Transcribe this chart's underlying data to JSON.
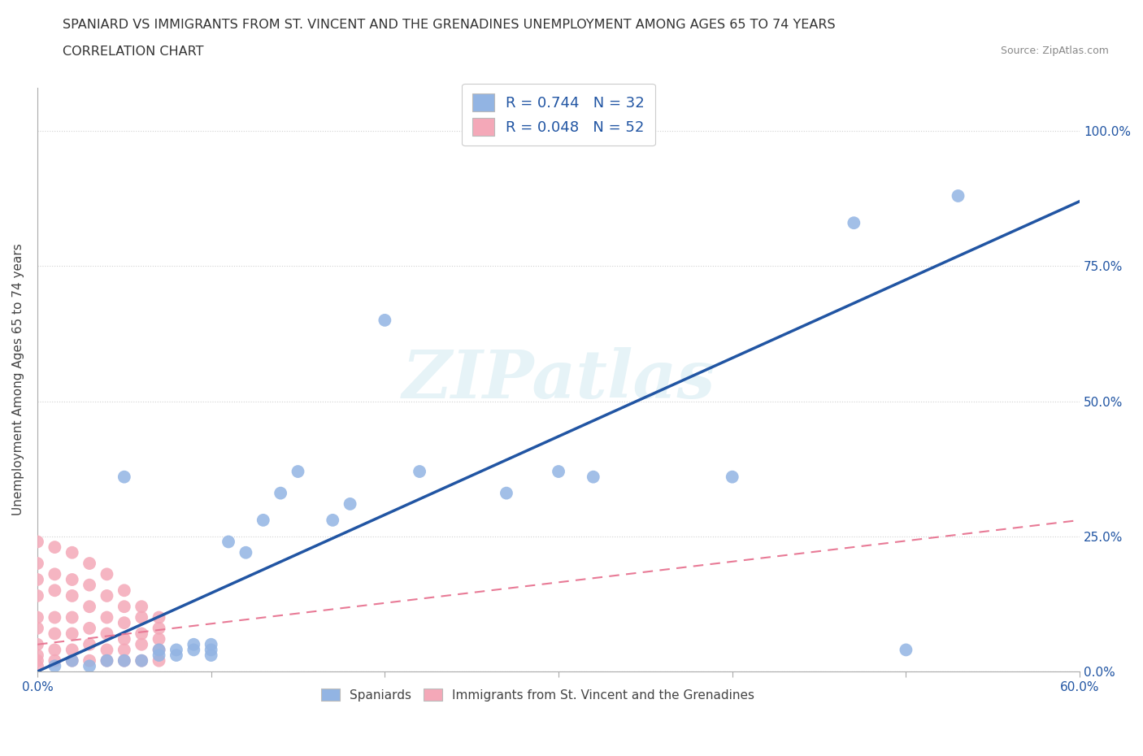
{
  "title_line1": "SPANIARD VS IMMIGRANTS FROM ST. VINCENT AND THE GRENADINES UNEMPLOYMENT AMONG AGES 65 TO 74 YEARS",
  "title_line2": "CORRELATION CHART",
  "source_text": "Source: ZipAtlas.com",
  "ylabel": "Unemployment Among Ages 65 to 74 years",
  "xlim": [
    0.0,
    0.6
  ],
  "ylim": [
    0.0,
    1.08
  ],
  "ytick_labels": [
    "0.0%",
    "25.0%",
    "50.0%",
    "75.0%",
    "100.0%"
  ],
  "ytick_vals": [
    0.0,
    0.25,
    0.5,
    0.75,
    1.0
  ],
  "xtick_vals": [
    0.0,
    0.1,
    0.2,
    0.3,
    0.4,
    0.5,
    0.6
  ],
  "xtick_labels": [
    "0.0%",
    "",
    "",
    "",
    "",
    "",
    "60.0%"
  ],
  "blue_R": 0.744,
  "blue_N": 32,
  "pink_R": 0.048,
  "pink_N": 52,
  "blue_color": "#92b4e3",
  "pink_color": "#f4a8b8",
  "blue_line_color": "#2155a3",
  "pink_line_color": "#e87a96",
  "watermark": "ZIPatlas",
  "blue_scatter_x": [
    0.01,
    0.02,
    0.03,
    0.04,
    0.05,
    0.05,
    0.06,
    0.07,
    0.07,
    0.08,
    0.08,
    0.09,
    0.09,
    0.1,
    0.1,
    0.1,
    0.11,
    0.12,
    0.13,
    0.14,
    0.15,
    0.17,
    0.18,
    0.2,
    0.22,
    0.27,
    0.3,
    0.32,
    0.4,
    0.47,
    0.5,
    0.53
  ],
  "blue_scatter_y": [
    0.01,
    0.02,
    0.01,
    0.02,
    0.02,
    0.36,
    0.02,
    0.03,
    0.04,
    0.03,
    0.04,
    0.04,
    0.05,
    0.03,
    0.04,
    0.05,
    0.24,
    0.22,
    0.28,
    0.33,
    0.37,
    0.28,
    0.31,
    0.65,
    0.37,
    0.33,
    0.37,
    0.36,
    0.36,
    0.83,
    0.04,
    0.88
  ],
  "pink_scatter_x": [
    0.0,
    0.0,
    0.0,
    0.0,
    0.0,
    0.0,
    0.0,
    0.0,
    0.0,
    0.0,
    0.01,
    0.01,
    0.01,
    0.01,
    0.01,
    0.01,
    0.01,
    0.02,
    0.02,
    0.02,
    0.02,
    0.02,
    0.02,
    0.02,
    0.03,
    0.03,
    0.03,
    0.03,
    0.03,
    0.03,
    0.04,
    0.04,
    0.04,
    0.04,
    0.04,
    0.04,
    0.05,
    0.05,
    0.05,
    0.05,
    0.05,
    0.05,
    0.06,
    0.06,
    0.06,
    0.06,
    0.06,
    0.07,
    0.07,
    0.07,
    0.07,
    0.07
  ],
  "pink_scatter_y": [
    0.24,
    0.2,
    0.17,
    0.14,
    0.1,
    0.08,
    0.05,
    0.03,
    0.02,
    0.01,
    0.23,
    0.18,
    0.15,
    0.1,
    0.07,
    0.04,
    0.02,
    0.22,
    0.17,
    0.14,
    0.1,
    0.07,
    0.04,
    0.02,
    0.2,
    0.16,
    0.12,
    0.08,
    0.05,
    0.02,
    0.18,
    0.14,
    0.1,
    0.07,
    0.04,
    0.02,
    0.15,
    0.12,
    0.09,
    0.06,
    0.04,
    0.02,
    0.12,
    0.1,
    0.07,
    0.05,
    0.02,
    0.1,
    0.08,
    0.06,
    0.04,
    0.02
  ],
  "blue_trendline_x": [
    0.0,
    0.6
  ],
  "blue_trendline_y": [
    0.0,
    0.87
  ],
  "pink_trendline_x": [
    0.0,
    0.6
  ],
  "pink_trendline_y": [
    0.05,
    0.28
  ]
}
